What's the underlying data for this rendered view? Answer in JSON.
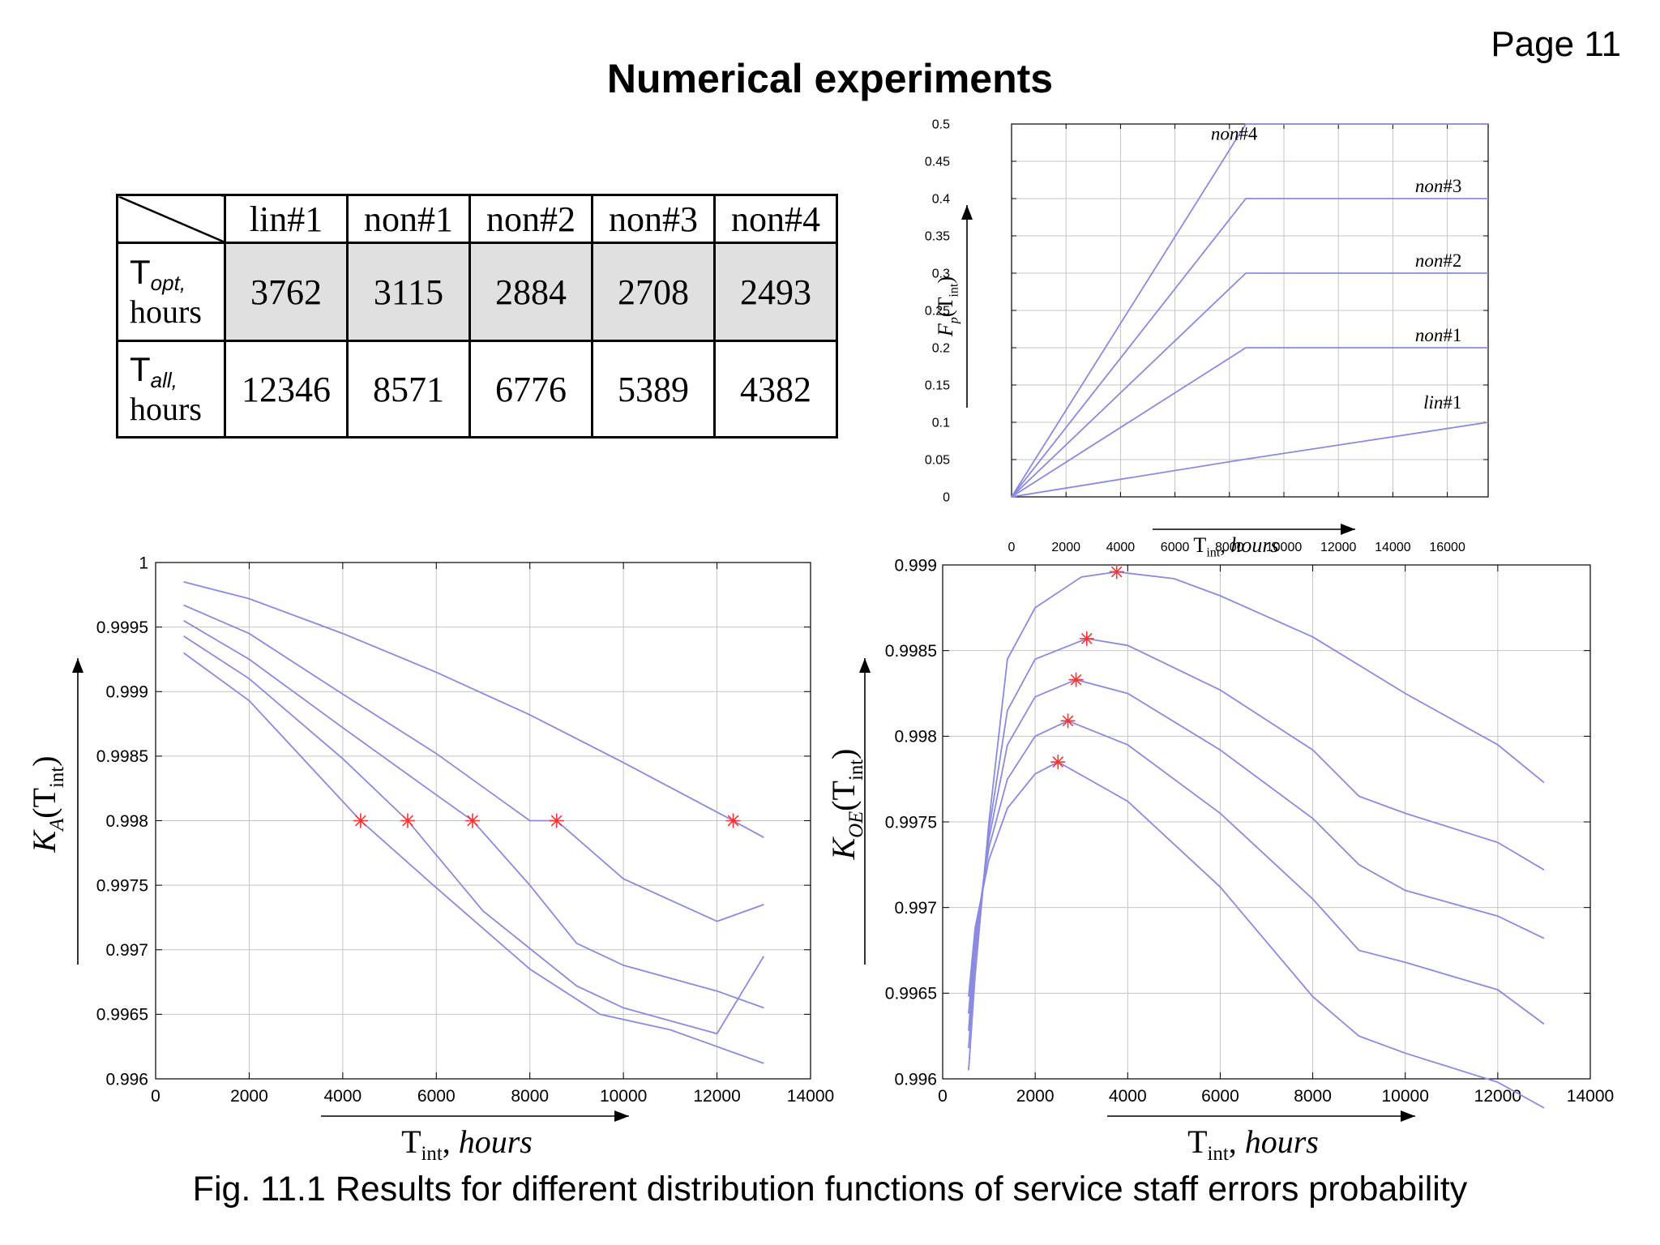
{
  "page": {
    "number": "Page 11",
    "title": "Numerical experiments",
    "caption": "Fig. 11.1 Results for different distribution functions of service staff errors probability"
  },
  "table": {
    "columns": [
      "lin#1",
      "non#1",
      "non#2",
      "non#3",
      "non#4"
    ],
    "rows": [
      {
        "symbol": "T",
        "subscript": "opt",
        "unit": "hours",
        "values": [
          "3762",
          "3115",
          "2884",
          "2708",
          "2493"
        ]
      },
      {
        "symbol": "T",
        "subscript": "all",
        "unit": "hours",
        "values": [
          "12346",
          "8571",
          "6776",
          "5389",
          "4382"
        ]
      }
    ]
  },
  "colors": {
    "line": "#8a8ae0",
    "marker": "#ff3030",
    "grid": "#c4c4c4"
  },
  "chart_data": [
    {
      "id": "fp",
      "type": "line",
      "ylabel": "F_p(T_int)",
      "xlabel": "T_int, hours",
      "xlim": [
        0,
        17500
      ],
      "ylim": [
        0,
        0.5
      ],
      "xticks": [
        "0",
        "2000",
        "4000",
        "6000",
        "8000",
        "10000",
        "12000",
        "14000",
        "16000"
      ],
      "yticks": [
        "0",
        "0.05",
        "0.1",
        "0.15",
        "0.2",
        "0.25",
        "0.3",
        "0.35",
        "0.4",
        "0.45",
        "0.5"
      ],
      "grid": true,
      "series": [
        {
          "name": "lin#1",
          "points": [
            [
              0,
              0
            ],
            [
              8500,
              0.05
            ],
            [
              17500,
              0.1
            ]
          ]
        },
        {
          "name": "non#1",
          "points": [
            [
              0,
              0
            ],
            [
              8600,
              0.2
            ],
            [
              17500,
              0.2
            ]
          ]
        },
        {
          "name": "non#2",
          "points": [
            [
              0,
              0
            ],
            [
              8600,
              0.3
            ],
            [
              17500,
              0.3
            ]
          ]
        },
        {
          "name": "non#3",
          "points": [
            [
              0,
              0
            ],
            [
              8600,
              0.4
            ],
            [
              17500,
              0.4
            ]
          ]
        },
        {
          "name": "non#4",
          "points": [
            [
              0,
              0
            ],
            [
              8600,
              0.5
            ],
            [
              17500,
              0.5
            ]
          ]
        }
      ]
    },
    {
      "id": "ka",
      "type": "line",
      "ylabel": "K_A(T_int)",
      "xlabel": "T_int, hours",
      "xlim": [
        0,
        14000
      ],
      "ylim": [
        0.996,
        1
      ],
      "xticks": [
        "0",
        "2000",
        "4000",
        "6000",
        "8000",
        "10000",
        "12000",
        "14000"
      ],
      "yticks": [
        "0.996",
        "0.9965",
        "0.997",
        "0.9975",
        "0.998",
        "0.9985",
        "0.999",
        "0.9995",
        "1"
      ],
      "grid": true,
      "series": [
        {
          "name": "lin#1",
          "points": [
            [
              600,
              0.99985
            ],
            [
              2000,
              0.99972
            ],
            [
              4000,
              0.99945
            ],
            [
              6000,
              0.99915
            ],
            [
              8000,
              0.99882
            ],
            [
              10000,
              0.99845
            ],
            [
              12346,
              0.998
            ],
            [
              13000,
              0.99787
            ]
          ]
        },
        {
          "name": "non#1",
          "points": [
            [
              600,
              0.99967
            ],
            [
              2000,
              0.99945
            ],
            [
              4000,
              0.99898
            ],
            [
              6000,
              0.99852
            ],
            [
              8000,
              0.998
            ],
            [
              8571,
              0.998
            ],
            [
              10000,
              0.99755
            ],
            [
              12000,
              0.99722
            ],
            [
              13000,
              0.99735
            ]
          ]
        },
        {
          "name": "non#2",
          "points": [
            [
              600,
              0.99955
            ],
            [
              2000,
              0.99925
            ],
            [
              4000,
              0.99872
            ],
            [
              6000,
              0.9982
            ],
            [
              6776,
              0.998
            ],
            [
              8000,
              0.9975
            ],
            [
              9000,
              0.99705
            ],
            [
              10000,
              0.99688
            ],
            [
              12000,
              0.99668
            ],
            [
              13000,
              0.99655
            ]
          ]
        },
        {
          "name": "non#3",
          "points": [
            [
              600,
              0.99943
            ],
            [
              2000,
              0.9991
            ],
            [
              4000,
              0.99848
            ],
            [
              5389,
              0.998
            ],
            [
              7000,
              0.9973
            ],
            [
              9000,
              0.99672
            ],
            [
              10000,
              0.99655
            ],
            [
              12000,
              0.99635
            ],
            [
              13000,
              0.99695
            ]
          ]
        },
        {
          "name": "non#4",
          "points": [
            [
              600,
              0.9993
            ],
            [
              2000,
              0.99893
            ],
            [
              4382,
              0.998
            ],
            [
              6000,
              0.99748
            ],
            [
              8000,
              0.99685
            ],
            [
              9500,
              0.9965
            ],
            [
              11000,
              0.99638
            ],
            [
              12000,
              0.99625
            ],
            [
              13000,
              0.99612
            ]
          ]
        }
      ],
      "markers": [
        [
          4382,
          0.998
        ],
        [
          5389,
          0.998
        ],
        [
          6776,
          0.998
        ],
        [
          8571,
          0.998
        ],
        [
          12346,
          0.998
        ]
      ]
    },
    {
      "id": "koe",
      "type": "line",
      "ylabel": "K_OE(T_int)",
      "xlabel": "T_int, hours",
      "xlim": [
        0,
        14000
      ],
      "ylim": [
        0.996,
        0.999
      ],
      "xticks": [
        "0",
        "2000",
        "4000",
        "6000",
        "8000",
        "10000",
        "12000",
        "14000"
      ],
      "yticks": [
        "0.996",
        "0.9965",
        "0.997",
        "0.9975",
        "0.998",
        "0.9985",
        "0.999"
      ],
      "grid": true,
      "series": [
        {
          "name": "lin#1",
          "points": [
            [
              560,
              0.99605
            ],
            [
              700,
              0.9966
            ],
            [
              1000,
              0.9975
            ],
            [
              1400,
              0.99845
            ],
            [
              2000,
              0.99875
            ],
            [
              3000,
              0.99893
            ],
            [
              3762,
              0.99896
            ],
            [
              5000,
              0.99892
            ],
            [
              6000,
              0.99882
            ],
            [
              8000,
              0.99858
            ],
            [
              10000,
              0.99825
            ],
            [
              12000,
              0.99795
            ],
            [
              13000,
              0.99773
            ]
          ]
        },
        {
          "name": "non#1",
          "points": [
            [
              560,
              0.99618
            ],
            [
              700,
              0.9967
            ],
            [
              1000,
              0.99745
            ],
            [
              1400,
              0.99815
            ],
            [
              2000,
              0.99845
            ],
            [
              3115,
              0.99857
            ],
            [
              4000,
              0.99853
            ],
            [
              6000,
              0.99827
            ],
            [
              8000,
              0.99792
            ],
            [
              9000,
              0.99765
            ],
            [
              10000,
              0.99755
            ],
            [
              12000,
              0.99738
            ],
            [
              13000,
              0.99722
            ]
          ]
        },
        {
          "name": "non#2",
          "points": [
            [
              560,
              0.99628
            ],
            [
              700,
              0.99678
            ],
            [
              1000,
              0.9974
            ],
            [
              1400,
              0.99795
            ],
            [
              2000,
              0.99823
            ],
            [
              2884,
              0.99833
            ],
            [
              4000,
              0.99825
            ],
            [
              6000,
              0.99792
            ],
            [
              8000,
              0.99752
            ],
            [
              9000,
              0.99725
            ],
            [
              10000,
              0.9971
            ],
            [
              12000,
              0.99695
            ],
            [
              13000,
              0.99682
            ]
          ]
        },
        {
          "name": "non#3",
          "points": [
            [
              560,
              0.99638
            ],
            [
              700,
              0.99683
            ],
            [
              1000,
              0.99735
            ],
            [
              1400,
              0.99775
            ],
            [
              2000,
              0.998
            ],
            [
              2708,
              0.99809
            ],
            [
              4000,
              0.99795
            ],
            [
              6000,
              0.99755
            ],
            [
              8000,
              0.99705
            ],
            [
              9000,
              0.99675
            ],
            [
              10000,
              0.99668
            ],
            [
              12000,
              0.99652
            ],
            [
              13000,
              0.99632
            ]
          ]
        },
        {
          "name": "non#4",
          "points": [
            [
              560,
              0.99648
            ],
            [
              700,
              0.99688
            ],
            [
              1000,
              0.99728
            ],
            [
              1400,
              0.99758
            ],
            [
              2000,
              0.99778
            ],
            [
              2493,
              0.99785
            ],
            [
              4000,
              0.99762
            ],
            [
              6000,
              0.99712
            ],
            [
              8000,
              0.99648
            ],
            [
              9000,
              0.99625
            ],
            [
              10000,
              0.99615
            ],
            [
              12000,
              0.99598
            ],
            [
              13000,
              0.99583
            ]
          ]
        }
      ],
      "markers": [
        [
          3762,
          0.99896
        ],
        [
          3115,
          0.99857
        ],
        [
          2884,
          0.99833
        ],
        [
          2708,
          0.99809
        ],
        [
          2493,
          0.99785
        ]
      ]
    }
  ]
}
